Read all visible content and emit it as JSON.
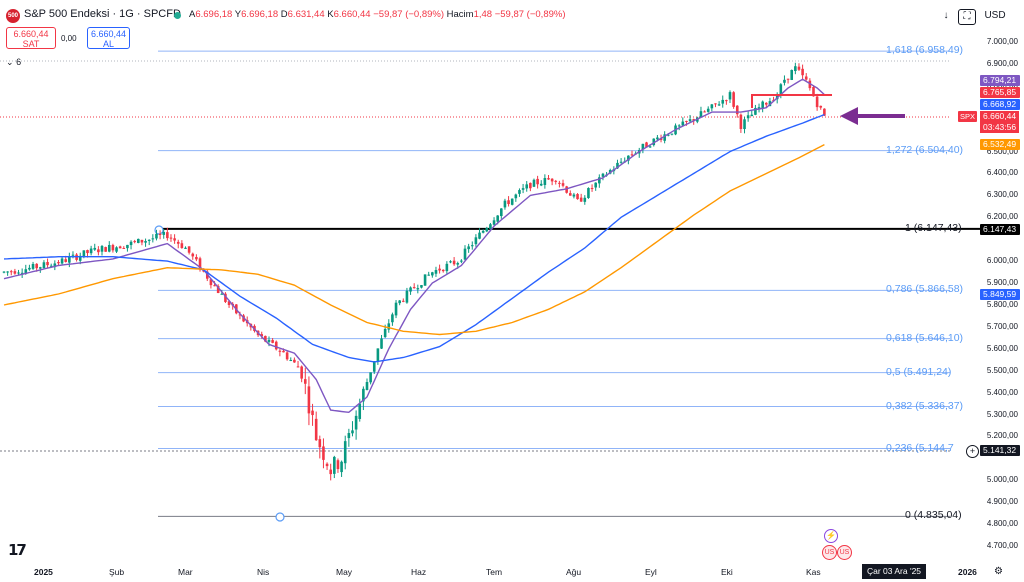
{
  "header": {
    "symbol_badge": "500",
    "title": "S&P 500 Endeksi · 1G · SPCFD",
    "open_label": "A",
    "open": "6.696,18",
    "high_label": "Y",
    "high": "6.696,18",
    "low_label": "D",
    "low": "6.631,44",
    "close_label": "K",
    "close": "6.660,44",
    "change": "−59,87 (−0,89%)",
    "volume_label": "Hacim",
    "volume": "1,48",
    "volume_change": "−59,87 (−0,89%)"
  },
  "trade": {
    "sell_price": "6.660,44",
    "sell_label": "SAT",
    "spread": "0,00",
    "buy_price": "6.660,44",
    "buy_label": "AL"
  },
  "indicators_toggle": "6",
  "toolbar": {
    "currency": "USD"
  },
  "axis_ticks": [
    "7.000,00",
    "6.900,00",
    "6.800,00",
    "6.500,00",
    "6.400,00",
    "6.300,00",
    "6.200,00",
    "6.000,00",
    "5.900,00",
    "5.800,00",
    "5.700,00",
    "5.600,00",
    "5.500,00",
    "5.400,00",
    "5.300,00",
    "5.200,00",
    "5.000,00",
    "4.900,00",
    "4.800,00",
    "4.700,00"
  ],
  "price_tags": [
    {
      "label": "6.794,21",
      "color": "#7e57c2"
    },
    {
      "label": "6.765,85",
      "color": "#f23645"
    },
    {
      "label": "6.668,92",
      "color": "#2962ff"
    },
    {
      "label": "6.532,49",
      "color": "#ff9800"
    },
    {
      "label": "6.147,43",
      "color": "#000000"
    },
    {
      "label": "5.849,59",
      "color": "#2962ff"
    },
    {
      "label": "5.141,32",
      "color": "#131722"
    }
  ],
  "current": {
    "symbol": "SPX",
    "price": "6.660,44",
    "countdown": "03:43:56"
  },
  "fib_levels": [
    {
      "label": "1,618 (6.958,49)",
      "value": 6958.49,
      "color": "#5b9cf6"
    },
    {
      "label": "1,272 (6.504,40)",
      "value": 6504.4,
      "color": "#5b9cf6"
    },
    {
      "label": "1 (6.147,43)",
      "value": 6147.43,
      "color": "#131722"
    },
    {
      "label": "0,786 (5.866,58)",
      "value": 5866.58,
      "color": "#5b9cf6"
    },
    {
      "label": "0,618 (5.646,10)",
      "value": 5646.1,
      "color": "#5b9cf6"
    },
    {
      "label": "0,5 (5.491,24)",
      "value": 5491.24,
      "color": "#5b9cf6"
    },
    {
      "label": "0,382 (5.336,37)",
      "value": 5336.37,
      "color": "#5b9cf6"
    },
    {
      "label": "0,236 (5.144,7",
      "value": 5144.7,
      "color": "#5b9cf6"
    },
    {
      "label": "0 (4.835,04)",
      "value": 4835.04,
      "color": "#131722"
    }
  ],
  "x_labels": [
    "2025",
    "Şub",
    "Mar",
    "Nis",
    "May",
    "Haz",
    "Tem",
    "Ağu",
    "Eyl",
    "Eki",
    "Kas",
    "2026"
  ],
  "crosshair_date": "Çar 03 Ara '25",
  "chart_data": {
    "type": "line",
    "title": "S&P 500 Endeksi · 1G · SPCFD",
    "ylim": [
      4650,
      7050
    ],
    "x_months": [
      "2025",
      "Şub",
      "Mar",
      "Nis",
      "May",
      "Haz",
      "Tem",
      "Ağu",
      "Eyl",
      "Eki",
      "Kas",
      "2026"
    ],
    "series": [
      {
        "values": [
          [
            0,
            5950
          ],
          [
            8,
            5970
          ],
          [
            16,
            6000
          ],
          [
            25,
            6050
          ],
          [
            35,
            6080
          ],
          [
            45,
            6120
          ],
          [
            50,
            6060
          ],
          [
            55,
            5950
          ],
          [
            62,
            5800
          ],
          [
            70,
            5660
          ],
          [
            77,
            5580
          ],
          [
            82,
            5500
          ],
          [
            86,
            5200
          ],
          [
            90,
            5050
          ],
          [
            93,
            5100
          ],
          [
            98,
            5350
          ],
          [
            103,
            5600
          ],
          [
            108,
            5800
          ],
          [
            113,
            5880
          ],
          [
            118,
            5950
          ],
          [
            125,
            6000
          ],
          [
            130,
            6100
          ],
          [
            138,
            6260
          ],
          [
            145,
            6350
          ],
          [
            152,
            6380
          ],
          [
            158,
            6270
          ],
          [
            166,
            6400
          ],
          [
            172,
            6480
          ],
          [
            180,
            6560
          ],
          [
            187,
            6620
          ],
          [
            195,
            6700
          ],
          [
            200,
            6760
          ],
          [
            203,
            6620
          ],
          [
            208,
            6700
          ],
          [
            213,
            6760
          ],
          [
            215,
            6830
          ],
          [
            218,
            6880
          ],
          [
            221,
            6820
          ],
          [
            224,
            6720
          ],
          [
            226,
            6660
          ]
        ]
      },
      {
        "values": [
          [
            0,
            5920
          ],
          [
            15,
            5980
          ],
          [
            30,
            6010
          ],
          [
            45,
            6080
          ],
          [
            55,
            5960
          ],
          [
            65,
            5760
          ],
          [
            73,
            5620
          ],
          [
            80,
            5580
          ],
          [
            86,
            5460
          ],
          [
            90,
            5320
          ],
          [
            95,
            5310
          ],
          [
            100,
            5380
          ],
          [
            106,
            5600
          ],
          [
            112,
            5780
          ],
          [
            118,
            5900
          ],
          [
            126,
            5980
          ],
          [
            135,
            6160
          ],
          [
            145,
            6300
          ],
          [
            155,
            6330
          ],
          [
            165,
            6380
          ],
          [
            175,
            6500
          ],
          [
            185,
            6600
          ],
          [
            195,
            6680
          ],
          [
            203,
            6680
          ],
          [
            210,
            6700
          ],
          [
            216,
            6790
          ],
          [
            220,
            6830
          ],
          [
            224,
            6790
          ],
          [
            226,
            6760
          ]
        ]
      },
      {
        "values": [
          [
            0,
            6010
          ],
          [
            15,
            6020
          ],
          [
            30,
            6020
          ],
          [
            45,
            6000
          ],
          [
            55,
            5960
          ],
          [
            65,
            5840
          ],
          [
            75,
            5740
          ],
          [
            85,
            5620
          ],
          [
            95,
            5560
          ],
          [
            102,
            5540
          ],
          [
            110,
            5560
          ],
          [
            120,
            5610
          ],
          [
            130,
            5710
          ],
          [
            140,
            5830
          ],
          [
            150,
            5950
          ],
          [
            160,
            6060
          ],
          [
            170,
            6200
          ],
          [
            180,
            6300
          ],
          [
            190,
            6400
          ],
          [
            200,
            6500
          ],
          [
            210,
            6570
          ],
          [
            220,
            6630
          ],
          [
            226,
            6669
          ]
        ]
      },
      {
        "values": [
          [
            0,
            5800
          ],
          [
            15,
            5850
          ],
          [
            30,
            5920
          ],
          [
            45,
            5970
          ],
          [
            60,
            5960
          ],
          [
            70,
            5940
          ],
          [
            80,
            5890
          ],
          [
            90,
            5800
          ],
          [
            100,
            5720
          ],
          [
            110,
            5680
          ],
          [
            120,
            5665
          ],
          [
            130,
            5680
          ],
          [
            140,
            5720
          ],
          [
            150,
            5780
          ],
          [
            160,
            5860
          ],
          [
            170,
            5970
          ],
          [
            180,
            6090
          ],
          [
            190,
            6210
          ],
          [
            200,
            6320
          ],
          [
            210,
            6400
          ],
          [
            220,
            6480
          ],
          [
            226,
            6532
          ]
        ]
      }
    ]
  }
}
